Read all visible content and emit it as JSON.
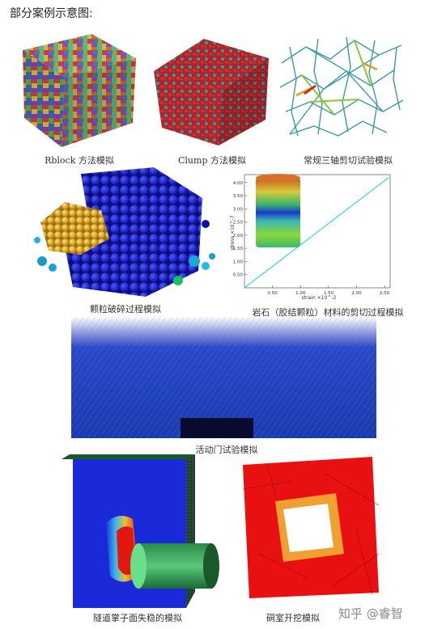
{
  "heading": "部分案例示意图:",
  "captions": {
    "rblock": "Rblock 方法模拟",
    "clump": "Clump 方法模拟",
    "triaxial": "常规三轴剪切试验模拟",
    "crushing": "颗粒破碎过程模拟",
    "rock_shear": "岩石（胶结颗粒）材料的剪切过程模拟",
    "trapdoor": "活动门试验模拟",
    "tunnel_face": "隧道掌子面失稳的模拟",
    "cavern": "硐室开挖模拟"
  },
  "chart": {
    "y_label": "stress ×10^-7",
    "x_label": "strain ×10^-2",
    "y_ticks": [
      "0.50",
      "1.00",
      "1.50",
      "2.00",
      "2.50",
      "3.00",
      "3.50",
      "4.00"
    ],
    "x_ticks": [
      "0.50",
      "1.00",
      "1.50",
      "2.00",
      "2.50"
    ]
  },
  "chart_data": {
    "type": "line",
    "xlabel": "strain ×10^-2",
    "ylabel": "stress ×10^-7",
    "xlim": [
      0,
      2.6
    ],
    "ylim": [
      0,
      4.3
    ],
    "series": [
      {
        "x": [
          0,
          2.58
        ],
        "y": [
          0,
          4.2
        ]
      }
    ]
  },
  "watermark": "知乎 @睿智",
  "colors": {
    "accent_blue": "#1a2fd6",
    "red": "#e01010",
    "chart_line": "#35d6e6"
  }
}
